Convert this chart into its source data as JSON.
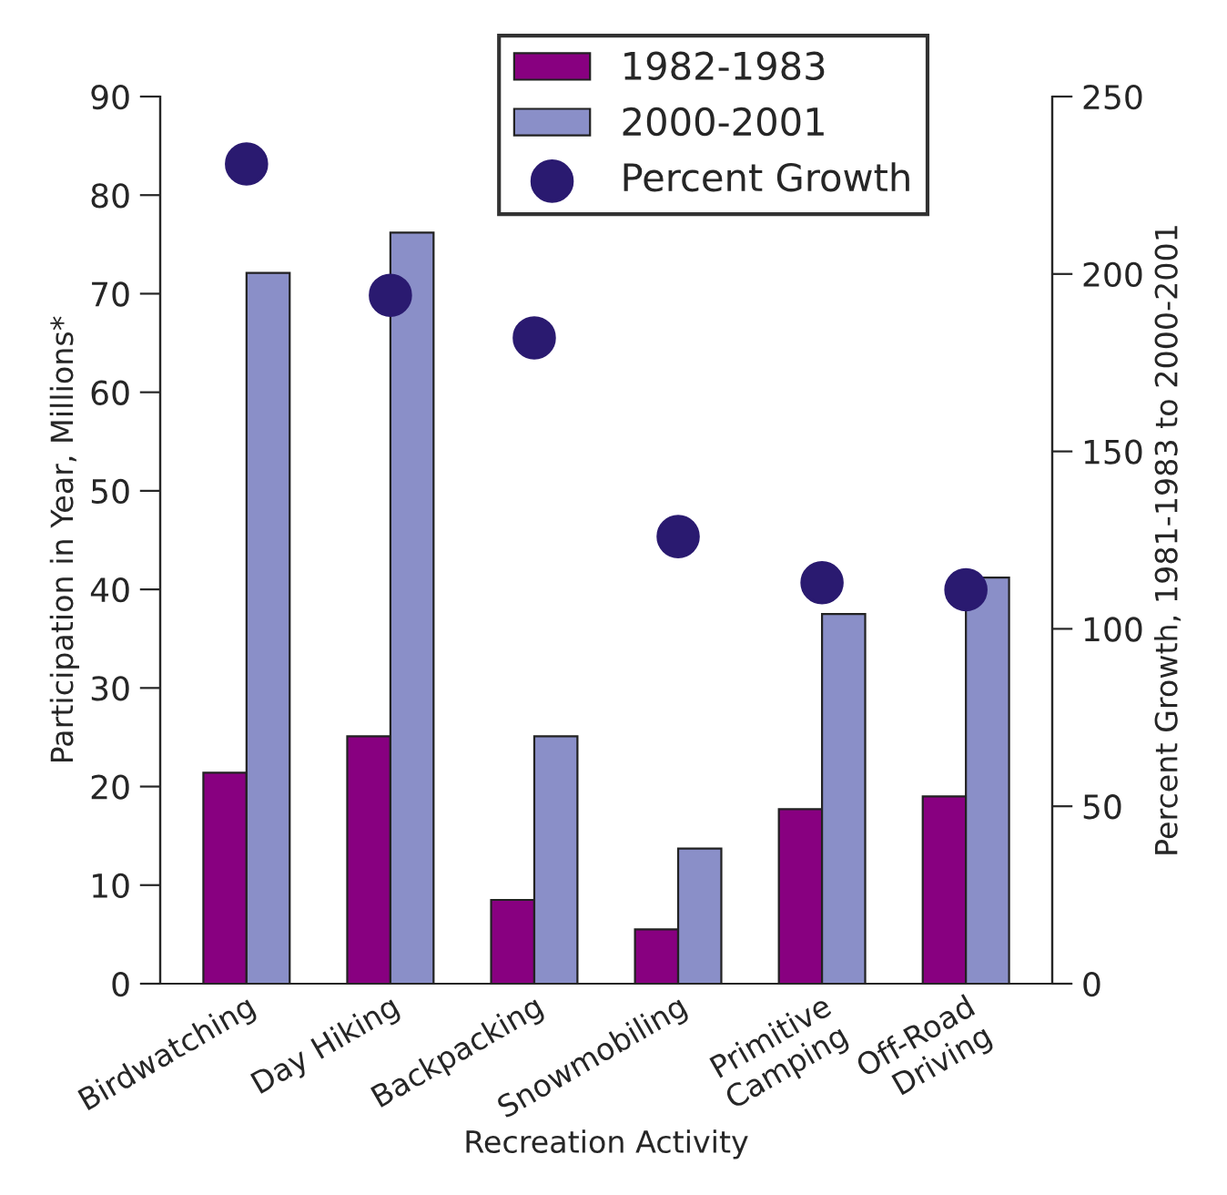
{
  "chart_data": {
    "type": "bar",
    "xlabel": "Recreation Activity",
    "ylabel": "Participation in Year, Millions*",
    "y2label": "Percent Growth, 1981-1983 to 2000-2001",
    "categories": [
      "Birdwatching",
      "Day Hiking",
      "Backpacking",
      "Snowmobiling",
      "Primitive\nCamping",
      "Off-Road\nDriving"
    ],
    "series": [
      {
        "name": "1982-1983",
        "color": "#880080",
        "values": [
          21.4,
          25.1,
          8.5,
          5.5,
          17.7,
          19.0
        ]
      },
      {
        "name": "2000-2001",
        "color": "#8a8fc8",
        "values": [
          72.1,
          76.2,
          25.1,
          13.7,
          37.5,
          41.2
        ]
      },
      {
        "name": "Percent Growth",
        "type": "scatter",
        "axis": "y2",
        "color": "#2a1a70",
        "marker": "circle",
        "values": [
          231,
          194,
          182,
          126,
          113,
          111
        ]
      }
    ],
    "ylim": [
      0,
      90
    ],
    "yticks": [
      0,
      10,
      20,
      30,
      40,
      50,
      60,
      70,
      80,
      90
    ],
    "y2lim": [
      0,
      250
    ],
    "y2ticks": [
      0,
      50,
      100,
      150,
      200,
      250
    ],
    "grid": false,
    "legend": "top"
  }
}
